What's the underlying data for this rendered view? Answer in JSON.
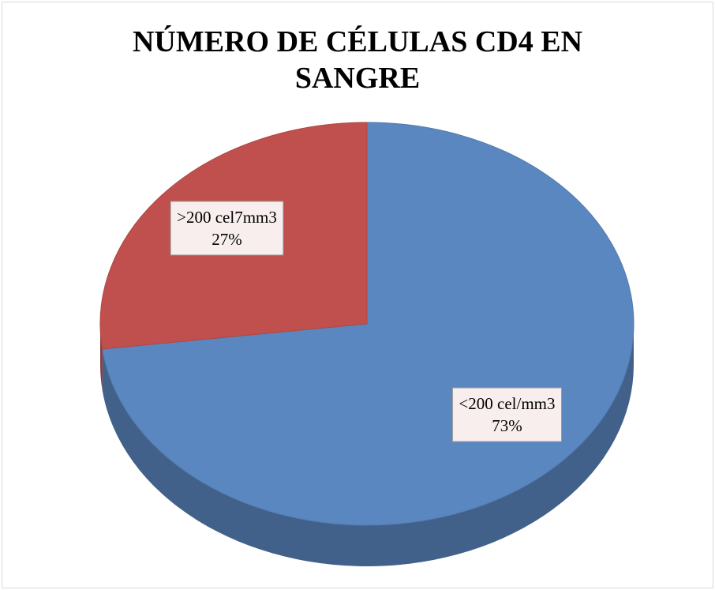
{
  "chart_data": {
    "type": "pie",
    "title": "NÚMERO DE CÉLULAS CD4 EN SANGRE",
    "categories": [
      "<200 cel/mm3",
      ">200 cel7mm3"
    ],
    "values": [
      73,
      27
    ],
    "value_labels": [
      "73%",
      "27%"
    ],
    "colors": [
      "#5b87c0",
      "#c0504d"
    ]
  }
}
